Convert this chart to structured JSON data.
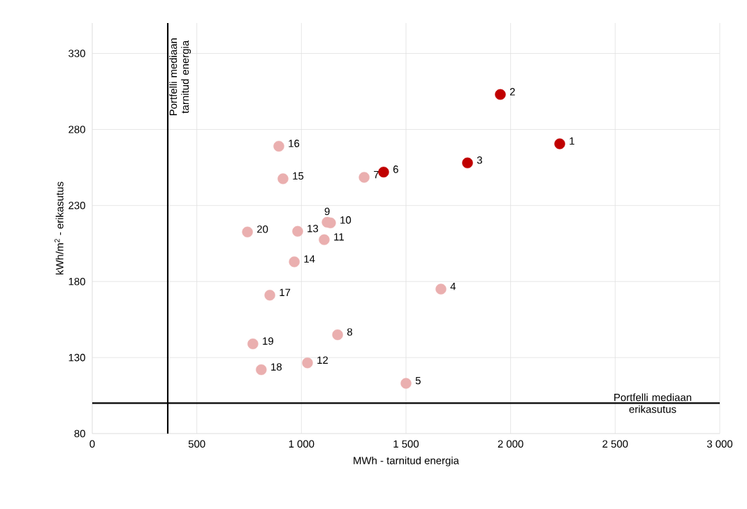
{
  "chart_data": {
    "type": "scatter",
    "xlabel": "MWh - tarnitud energia",
    "ylabel": "kWh/m$^{2}$ - erikasutus",
    "xlim": [
      0,
      3000
    ],
    "ylim": [
      80,
      350
    ],
    "xticks": [
      0,
      500,
      {
        "value": 1000,
        "label": "1 000"
      },
      {
        "value": 1500,
        "label": "1 500"
      },
      {
        "value": 2000,
        "label": "2 000"
      },
      {
        "value": 2500,
        "label": "2 500"
      },
      {
        "value": 3000,
        "label": "3 000"
      }
    ],
    "yticks": [
      80,
      130,
      180,
      230,
      280,
      330
    ],
    "grid": true,
    "series": [
      {
        "color": "#c00000",
        "x": [
          2235,
          1951,
          1794,
          1393
        ],
        "values": [
          270.6,
          303,
          258,
          252
        ]
      },
      {
        "color": "#eaafaf",
        "x": [
          1667,
          1500,
          1300,
          1173,
          1123,
          1139,
          1109,
          1029,
          982,
          966,
          912,
          892,
          849,
          808,
          768,
          742
        ],
        "values": [
          175,
          113,
          248.5,
          145,
          219,
          218.6,
          207.5,
          126.5,
          213,
          193,
          247.6,
          269,
          171,
          122,
          139,
          212.6
        ]
      }
    ],
    "ref_lines": [
      {
        "axis": "x",
        "value": 361,
        "label": "Portfelli mediaan tarnitud energia",
        "color": "#000000"
      },
      {
        "axis": "y",
        "value": 100,
        "label": "Portfelli mediaan erikasutus",
        "color": "#000000"
      }
    ],
    "annotations": [
      {
        "text": "1",
        "x": 2235,
        "y": 270.6
      },
      {
        "text": "2",
        "x": 1951,
        "y": 303
      },
      {
        "text": "3",
        "x": 1794,
        "y": 258
      },
      {
        "text": "4",
        "x": 1667,
        "y": 175
      },
      {
        "text": "5",
        "x": 1500,
        "y": 113
      },
      {
        "text": "6",
        "x": 1393,
        "y": 252
      },
      {
        "text": "7",
        "x": 1300,
        "y": 248.5
      },
      {
        "text": "8",
        "x": 1173,
        "y": 145
      },
      {
        "text": "9",
        "x": 1123,
        "y": 219
      },
      {
        "text": "10",
        "x": 1139,
        "y": 218.6
      },
      {
        "text": "11",
        "x": 1109,
        "y": 207.5
      },
      {
        "text": "12",
        "x": 1029,
        "y": 126.5
      },
      {
        "text": "13",
        "x": 982,
        "y": 213
      },
      {
        "text": "14",
        "x": 966,
        "y": 193
      },
      {
        "text": "15",
        "x": 912,
        "y": 247.6
      },
      {
        "text": "16",
        "x": 892,
        "y": 269
      },
      {
        "text": "17",
        "x": 849,
        "y": 171
      },
      {
        "text": "18",
        "x": 808,
        "y": 122
      },
      {
        "text": "19",
        "x": 768,
        "y": 139
      },
      {
        "text": "20",
        "x": 742,
        "y": 212.6
      }
    ]
  }
}
